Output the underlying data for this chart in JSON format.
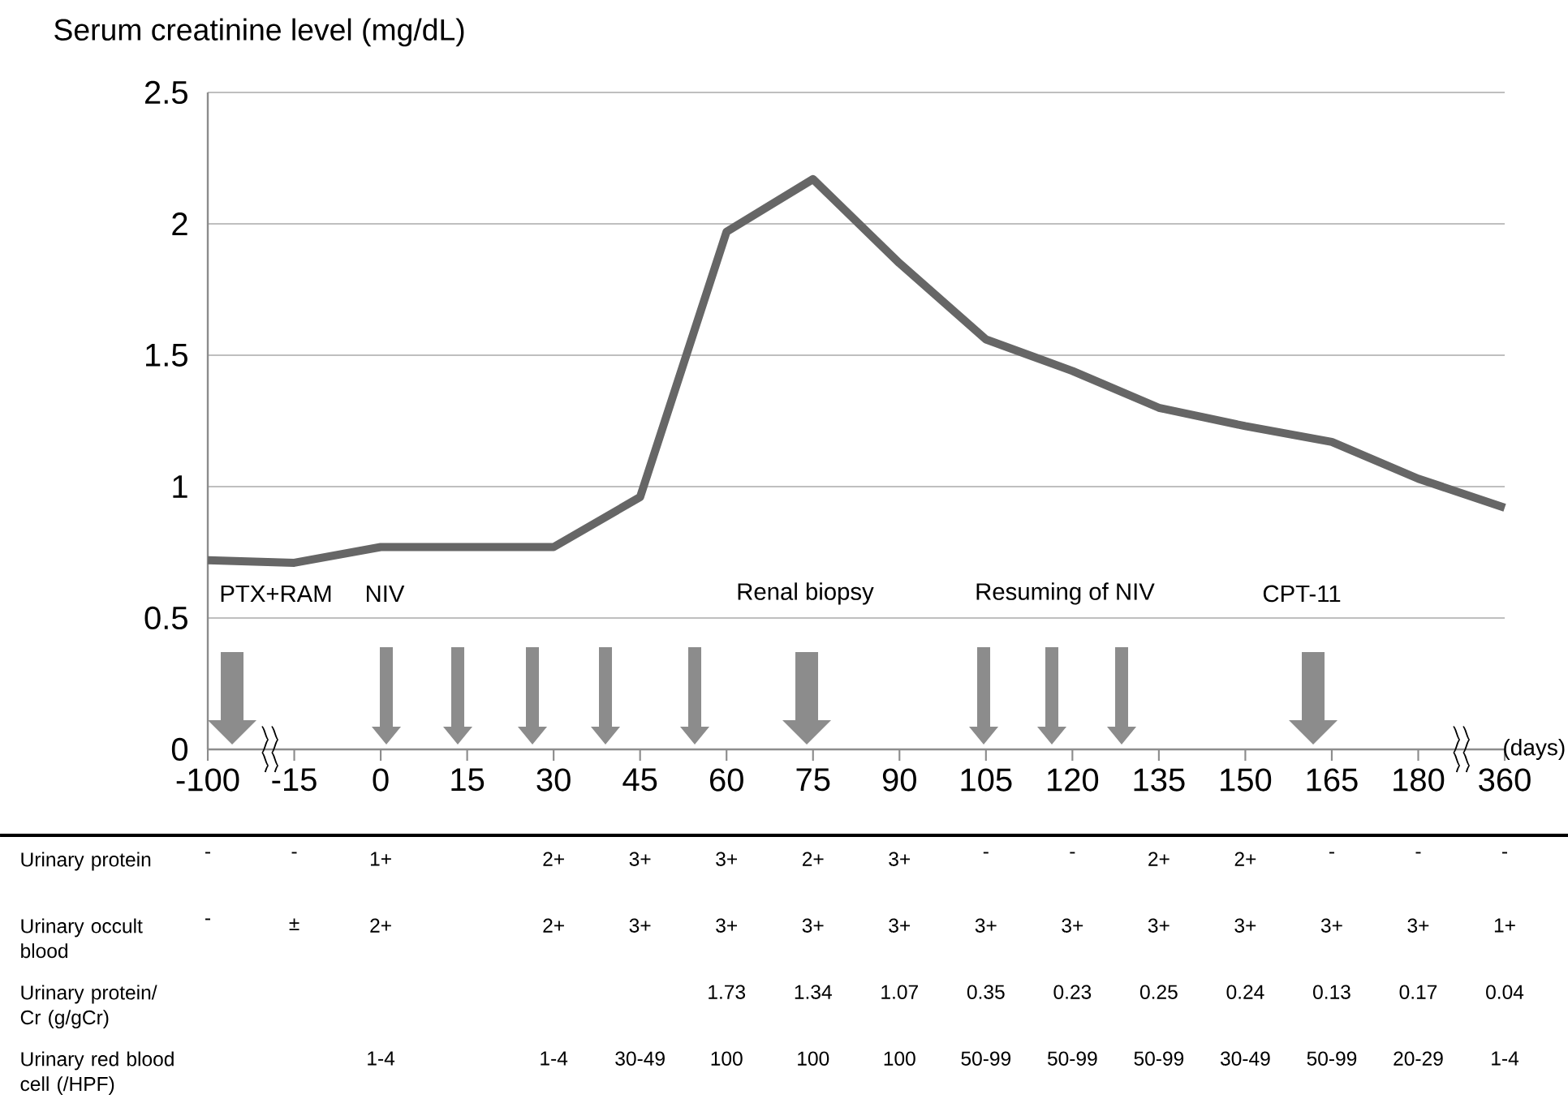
{
  "chart_data": [
    {
      "type": "line",
      "ylabel": "Serum creatinine level (mg/dL)",
      "xlabel": "(days)",
      "categories": [
        "-100",
        "-15",
        "0",
        "15",
        "30",
        "45",
        "60",
        "75",
        "90",
        "105",
        "120",
        "135",
        "150",
        "165",
        "180",
        "360"
      ],
      "series": [
        {
          "color": "#666666",
          "values": [
            0.72,
            0.71,
            0.77,
            0.77,
            0.77,
            0.96,
            1.97,
            2.17,
            1.85,
            1.56,
            1.44,
            1.3,
            1.23,
            1.17,
            1.03,
            0.92
          ]
        }
      ],
      "ylim": [
        0,
        2.5
      ],
      "yticks": [
        0,
        0.5,
        1,
        1.5,
        2,
        2.5
      ],
      "grid": "y",
      "annotations": [
        "PTX+RAM",
        "NIV",
        "Renal biopsy",
        "Resuming of NIV",
        "CPT-11"
      ]
    },
    {
      "type": "heatmap",
      "categories": [
        null,
        null,
        null,
        null,
        null,
        null,
        null,
        null,
        null,
        null,
        null,
        null,
        null,
        null,
        null,
        null
      ],
      "y_categories": [
        "Urinary protein",
        "Urinary occult blood",
        "Urinary protein/ Cr (g/gCr)",
        "Urinary red blood cell (/HPF)"
      ],
      "cells": [
        [
          null,
          null,
          null,
          null,
          null,
          null,
          null,
          null,
          null,
          null,
          null,
          null,
          null,
          null,
          null,
          null
        ],
        [
          null,
          null,
          null,
          null,
          null,
          null,
          null,
          null,
          null,
          null,
          null,
          null,
          null,
          null,
          null,
          null
        ],
        [
          null,
          null,
          null,
          null,
          null,
          null,
          null,
          null,
          null,
          null,
          null,
          null,
          null,
          null,
          null,
          null
        ],
        [
          null,
          null,
          null,
          null,
          null,
          null,
          null,
          null,
          null,
          null,
          null,
          null,
          null,
          null,
          null,
          null
        ]
      ],
      "cell_labels": [
        [
          "-",
          "-",
          "1+",
          null,
          "2+",
          "3+",
          "3+",
          "2+",
          "3+",
          "-",
          "-",
          "2+",
          "2+",
          "-",
          "-",
          "-"
        ],
        [
          "-",
          "±",
          "2+",
          null,
          "2+",
          "3+",
          "3+",
          "3+",
          "3+",
          "3+",
          "3+",
          "3+",
          "3+",
          "3+",
          "3+",
          "1+"
        ],
        [
          null,
          null,
          null,
          null,
          null,
          null,
          "1.73",
          "1.34",
          "1.07",
          "0.35",
          "0.23",
          "0.25",
          "0.24",
          "0.13",
          "0.17",
          "0.04"
        ],
        [
          null,
          null,
          "1-4",
          null,
          "1-4",
          "30-49",
          "100",
          "100",
          "100",
          "50-99",
          "50-99",
          "50-99",
          "30-49",
          "50-99",
          "20-29",
          "1-4"
        ]
      ]
    }
  ]
}
